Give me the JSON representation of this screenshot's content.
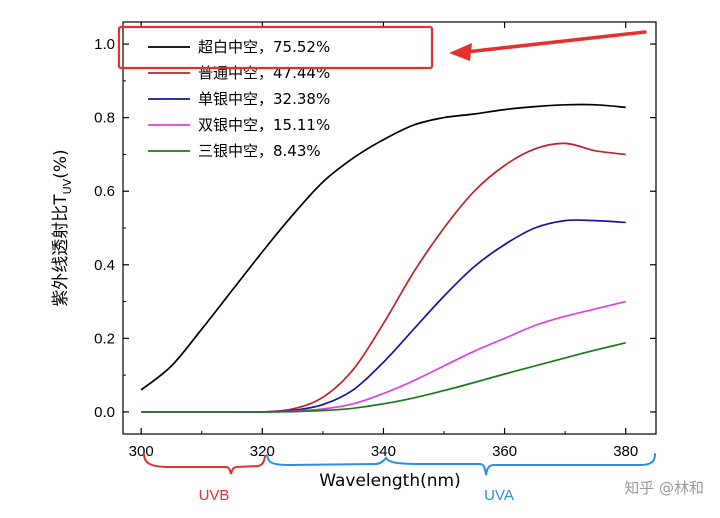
{
  "chart_data": {
    "type": "line",
    "xlabel": "Wavelength(nm)",
    "ylabel_main": "紫外线透射比T",
    "ylabel_sub": "UV",
    "ylabel_unit": "(%)",
    "xlim": [
      297,
      385
    ],
    "ylim": [
      -0.06,
      1.06
    ],
    "x_ticks": [
      300,
      320,
      340,
      360,
      380
    ],
    "y_ticks": [
      0.0,
      0.2,
      0.4,
      0.6,
      0.8,
      1.0
    ],
    "y_tick_labels": [
      "0.0",
      "0.2",
      "0.4",
      "0.6",
      "0.8",
      "1.0"
    ],
    "grid": false,
    "legend_position": "top-left",
    "series": [
      {
        "name": "超白中空，75.52%",
        "color": "#000000",
        "x": [
          300,
          305,
          310,
          315,
          320,
          325,
          330,
          335,
          340,
          345,
          350,
          355,
          360,
          365,
          370,
          375,
          380
        ],
        "y": [
          0.06,
          0.125,
          0.225,
          0.33,
          0.435,
          0.535,
          0.625,
          0.69,
          0.74,
          0.78,
          0.8,
          0.81,
          0.822,
          0.83,
          0.835,
          0.835,
          0.828
        ]
      },
      {
        "name": "普通中空，47.44%",
        "color": "#c0202a",
        "x": [
          300,
          305,
          310,
          315,
          320,
          325,
          330,
          335,
          340,
          345,
          350,
          355,
          360,
          365,
          370,
          375,
          380
        ],
        "y": [
          0.0,
          0.0,
          0.0,
          0.0,
          0.0,
          0.008,
          0.04,
          0.115,
          0.24,
          0.38,
          0.5,
          0.6,
          0.67,
          0.715,
          0.73,
          0.71,
          0.7
        ]
      },
      {
        "name": "单银中空，32.38%",
        "color": "#1515a0",
        "x": [
          300,
          305,
          310,
          315,
          320,
          325,
          330,
          335,
          340,
          345,
          350,
          355,
          360,
          365,
          370,
          375,
          380
        ],
        "y": [
          0.0,
          0.0,
          0.0,
          0.0,
          0.0,
          0.004,
          0.02,
          0.06,
          0.135,
          0.225,
          0.315,
          0.395,
          0.455,
          0.5,
          0.52,
          0.52,
          0.515
        ]
      },
      {
        "name": "双银中空，15.11%",
        "color": "#e040e0",
        "x": [
          300,
          305,
          310,
          315,
          320,
          325,
          330,
          335,
          340,
          345,
          350,
          355,
          360,
          365,
          370,
          375,
          380
        ],
        "y": [
          0.0,
          0.0,
          0.0,
          0.0,
          0.0,
          0.002,
          0.008,
          0.022,
          0.05,
          0.085,
          0.125,
          0.165,
          0.2,
          0.235,
          0.26,
          0.28,
          0.3
        ]
      },
      {
        "name": "三银中空，8.43%",
        "color": "#1a7a1a",
        "x": [
          300,
          305,
          310,
          315,
          320,
          325,
          330,
          335,
          340,
          345,
          350,
          355,
          360,
          365,
          370,
          375,
          380
        ],
        "y": [
          0.0,
          0.0,
          0.0,
          0.0,
          0.0,
          0.001,
          0.004,
          0.01,
          0.022,
          0.038,
          0.058,
          0.08,
          0.103,
          0.125,
          0.147,
          0.168,
          0.188
        ]
      }
    ],
    "annotations": {
      "uvb_label": "UVB",
      "uvb_color": "#e53030",
      "uva_label": "UVA",
      "uva_color": "#2a8fe0",
      "highlight_color": "#e53030",
      "watermark": "知乎 @林和"
    }
  }
}
